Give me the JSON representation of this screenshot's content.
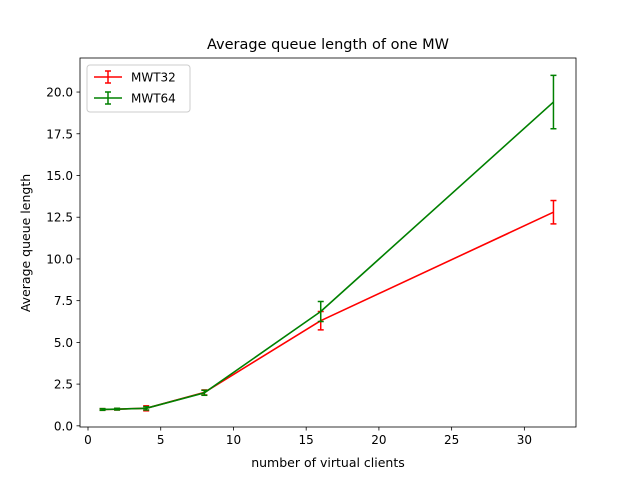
{
  "chart_data": {
    "type": "line",
    "title": "Average queue length of one MW",
    "xlabel": "number of virtual clients",
    "ylabel": "Average queue length",
    "xlim": [
      -0.55,
      33.55
    ],
    "ylim": [
      -0.07,
      22.04
    ],
    "xticks": [
      0,
      5,
      10,
      15,
      20,
      25,
      30
    ],
    "xtick_labels": [
      "0",
      "5",
      "10",
      "15",
      "20",
      "25",
      "30"
    ],
    "yticks": [
      0.0,
      2.5,
      5.0,
      7.5,
      10.0,
      12.5,
      15.0,
      17.5,
      20.0
    ],
    "ytick_labels": [
      "0.0",
      "2.5",
      "5.0",
      "7.5",
      "10.0",
      "12.5",
      "15.0",
      "17.5",
      "20.0"
    ],
    "grid": false,
    "legend_position": "top-left",
    "error_bars": true,
    "x": [
      1,
      2,
      4,
      8,
      16,
      32
    ],
    "series": [
      {
        "name": "MWT32",
        "color": "#ff0000",
        "values": [
          0.98,
          1.0,
          1.05,
          2.0,
          6.3,
          12.8
        ],
        "errors": [
          0.05,
          0.05,
          0.15,
          0.15,
          0.55,
          0.7
        ]
      },
      {
        "name": "MWT64",
        "color": "#008000",
        "values": [
          0.98,
          1.0,
          1.05,
          1.98,
          6.85,
          19.4
        ],
        "errors": [
          0.05,
          0.05,
          0.1,
          0.15,
          0.6,
          1.6
        ]
      }
    ]
  }
}
